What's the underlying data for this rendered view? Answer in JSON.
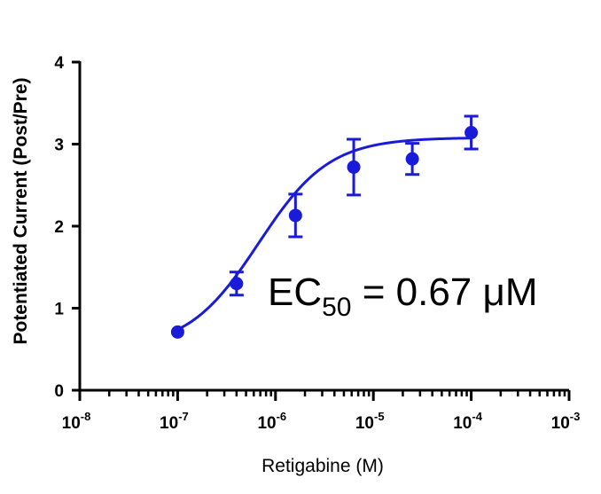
{
  "chart_data": {
    "type": "scatter",
    "title": "",
    "xlabel": "Retigabine (M)",
    "ylabel": "Potentiated Current (Post/Pre)",
    "xscale": "log",
    "xlim": [
      1e-08,
      0.001
    ],
    "ylim": [
      0,
      4
    ],
    "grid": false,
    "x_ticks": [
      {
        "base": "10",
        "exp": "-8"
      },
      {
        "base": "10",
        "exp": "-7"
      },
      {
        "base": "10",
        "exp": "-6"
      },
      {
        "base": "10",
        "exp": "-5"
      },
      {
        "base": "10",
        "exp": "-4"
      },
      {
        "base": "10",
        "exp": "-3"
      }
    ],
    "y_ticks": [
      "0",
      "1",
      "2",
      "3",
      "4"
    ],
    "series": [
      {
        "color": "#1a1adb",
        "points": [
          {
            "x": 1e-07,
            "y": 0.71,
            "err": 0.0
          },
          {
            "x": 4e-07,
            "y": 1.3,
            "err": 0.14
          },
          {
            "x": 1.6e-06,
            "y": 2.13,
            "err": 0.26
          },
          {
            "x": 6.3e-06,
            "y": 2.72,
            "err": 0.34
          },
          {
            "x": 2.5e-05,
            "y": 2.82,
            "err": 0.19
          },
          {
            "x": 0.0001,
            "y": 3.14,
            "err": 0.2
          }
        ],
        "fit": {
          "bottom": 0.5,
          "top": 3.08,
          "ec50": 6.7e-07,
          "hill": 1.2,
          "x_range": [
            1e-07,
            0.0001
          ]
        }
      }
    ],
    "annotation": {
      "main": "EC",
      "sub": "50",
      "rest": " = 0.67 μM"
    }
  }
}
